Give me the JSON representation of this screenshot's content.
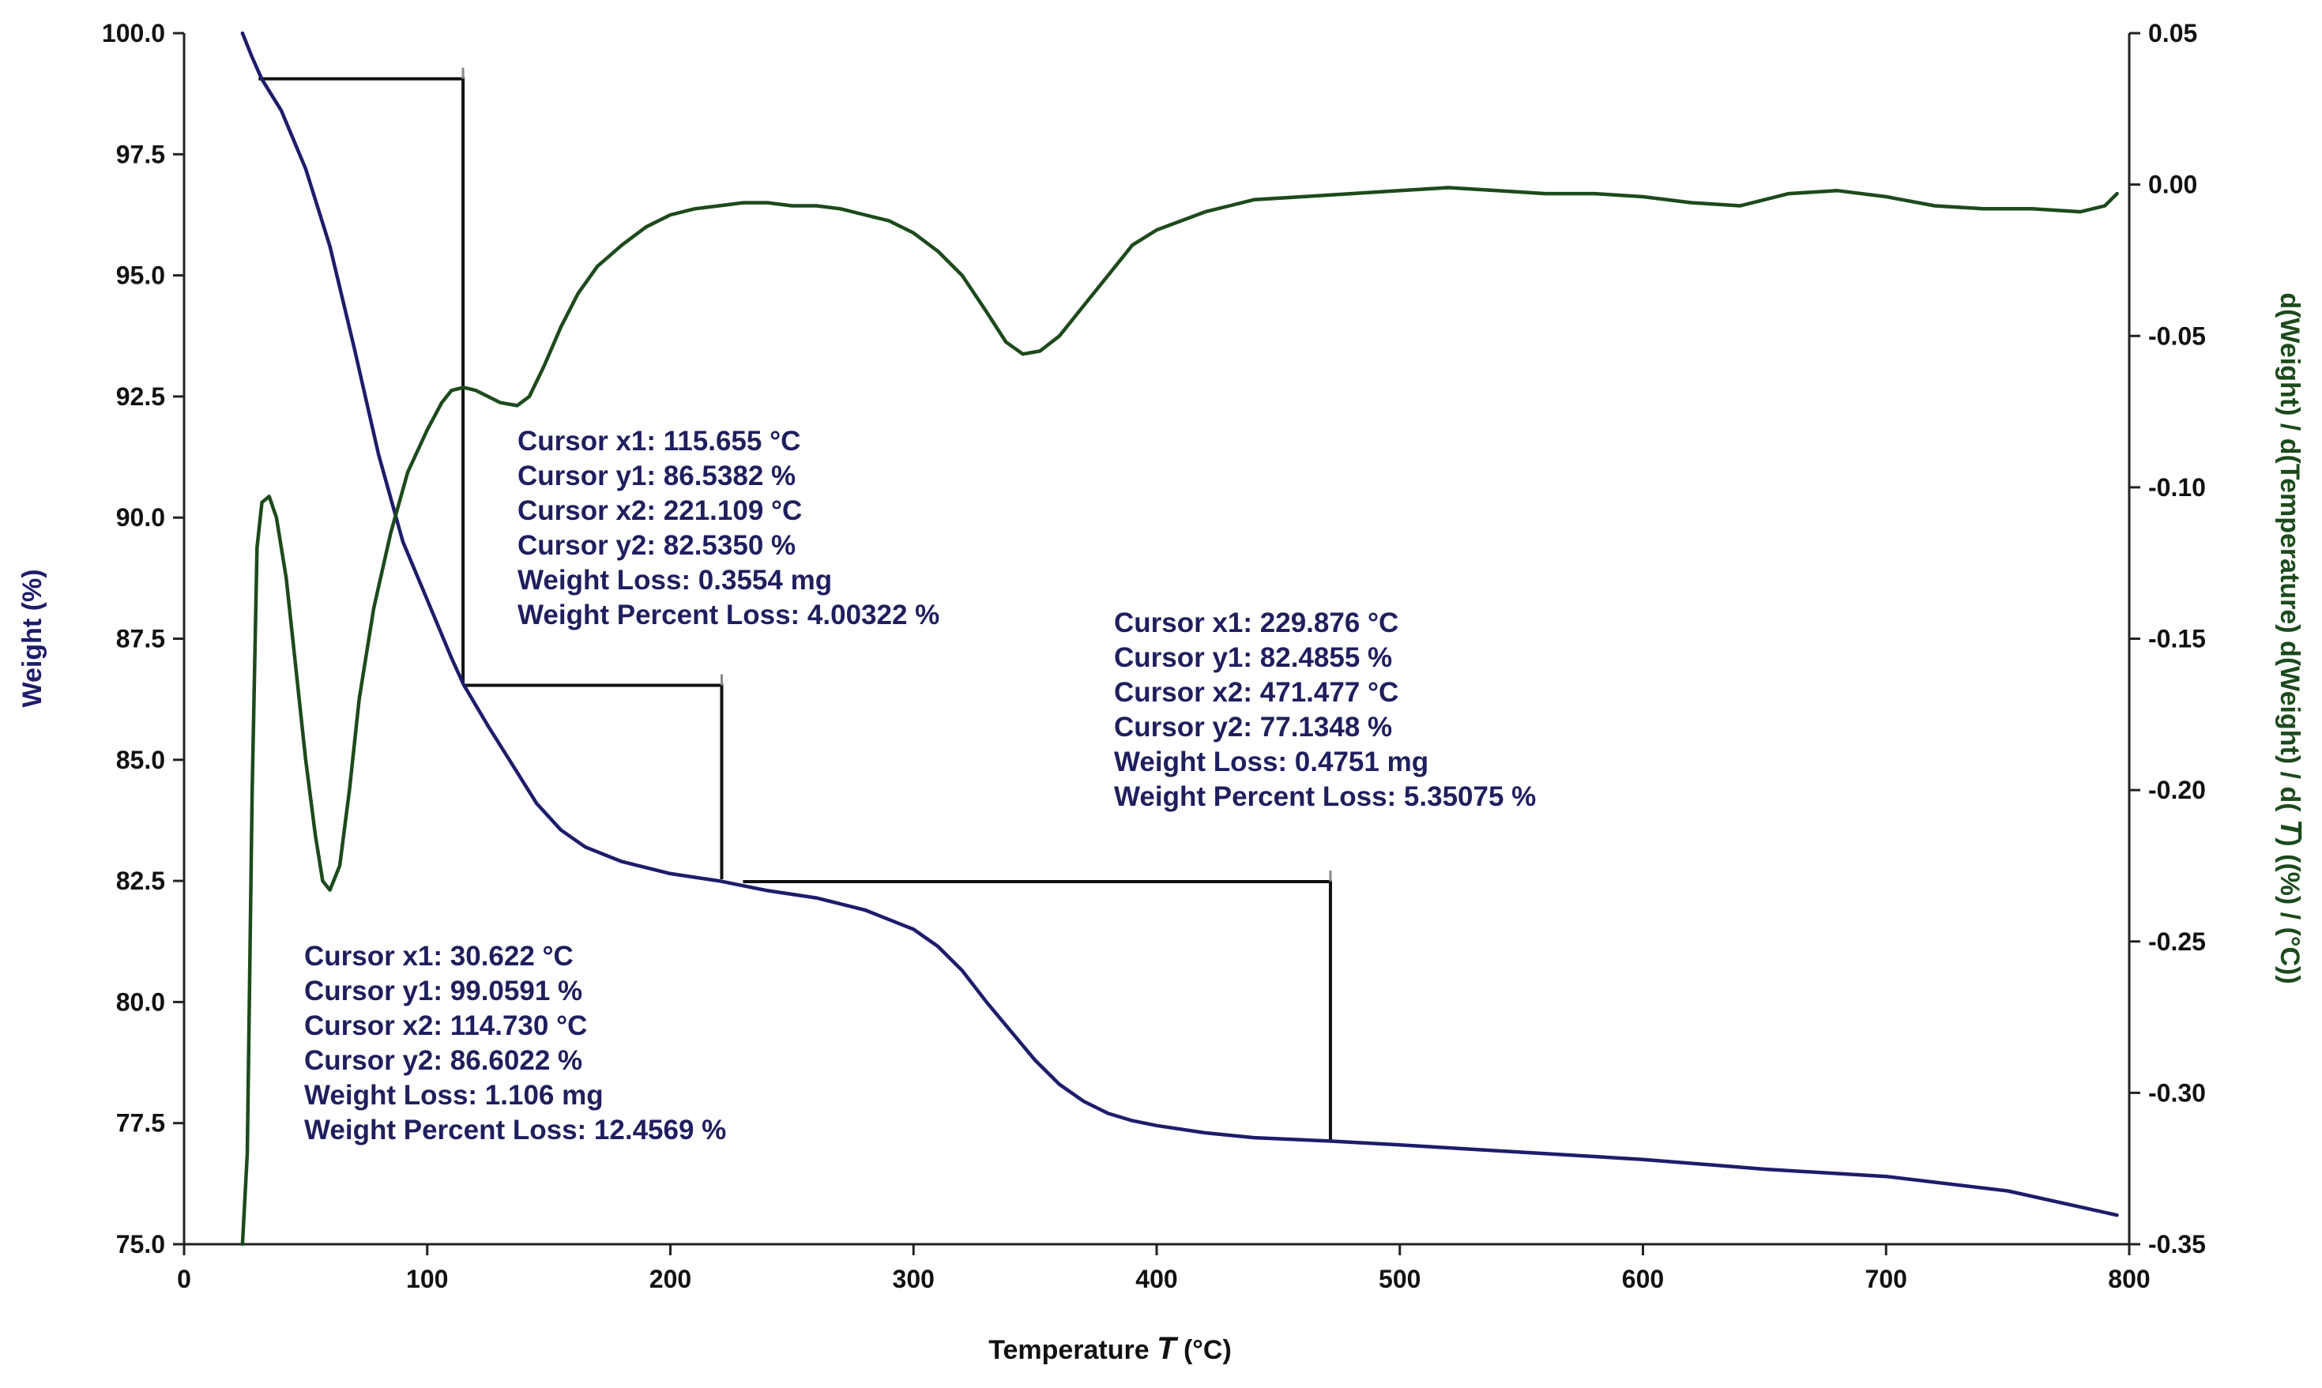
{
  "chart_data": {
    "type": "line",
    "title": "",
    "xlabel": "Temperature T (°C)",
    "xlabel_parts": {
      "prefix": "Temperature ",
      "symbol": "T",
      "suffix": " (°C)"
    },
    "ylabel": "Weight (%)",
    "y2label": "d(Weight) / d(Temperature) d(Weight) / d( T) ((%) / (°C))",
    "y2label_parts": {
      "prefix": "d(Weight) / d(Temperature) d(Weight) / d( ",
      "symbol": "T",
      "suffix": ") ((%) / (°C))"
    },
    "xlim": [
      0,
      800
    ],
    "ylim": [
      75.0,
      100.0
    ],
    "y2lim": [
      -0.35,
      0.05
    ],
    "x_ticks": [
      "0",
      "100",
      "200",
      "300",
      "400",
      "500",
      "600",
      "700",
      "800"
    ],
    "y_ticks": [
      "75.0",
      "77.5",
      "80.0",
      "82.5",
      "85.0",
      "87.5",
      "90.0",
      "92.5",
      "95.0",
      "97.5",
      "100.0"
    ],
    "y2_ticks": [
      "-0.35",
      "-0.30",
      "-0.25",
      "-0.20",
      "-0.15",
      "-0.10",
      "-0.05",
      "0.00",
      "0.05"
    ],
    "grid": false,
    "colors": {
      "weight": "#1d1d6b",
      "derivative": "#1c4a1c",
      "cursor": "#111111",
      "annot": "#1f1f5e"
    },
    "series": [
      {
        "axis": "left",
        "color": "#1d1d6b",
        "x": [
          24,
          28,
          32,
          40,
          50,
          60,
          70,
          80,
          90,
          100,
          110,
          115,
          125,
          135,
          145,
          155,
          165,
          180,
          200,
          220,
          240,
          260,
          280,
          300,
          310,
          320,
          330,
          340,
          350,
          360,
          370,
          380,
          390,
          400,
          420,
          440,
          471,
          500,
          550,
          600,
          650,
          700,
          750,
          795
        ],
        "y": [
          100.0,
          99.5,
          99.05,
          98.4,
          97.2,
          95.6,
          93.5,
          91.3,
          89.5,
          88.3,
          87.1,
          86.55,
          85.7,
          84.9,
          84.1,
          83.55,
          83.2,
          82.9,
          82.65,
          82.5,
          82.3,
          82.15,
          81.9,
          81.5,
          81.15,
          80.65,
          80.0,
          79.4,
          78.8,
          78.3,
          77.95,
          77.7,
          77.55,
          77.45,
          77.3,
          77.2,
          77.13,
          77.05,
          76.9,
          76.75,
          76.55,
          76.4,
          76.1,
          75.6
        ]
      },
      {
        "axis": "right",
        "color": "#1c4a1c",
        "x": [
          24,
          26,
          28,
          30,
          32,
          35,
          38,
          42,
          46,
          50,
          54,
          57,
          60,
          64,
          68,
          72,
          78,
          85,
          92,
          100,
          106,
          110,
          115,
          120,
          125,
          130,
          137,
          142,
          148,
          155,
          162,
          170,
          180,
          190,
          200,
          210,
          220,
          230,
          240,
          250,
          260,
          270,
          280,
          290,
          300,
          310,
          320,
          330,
          338,
          345,
          352,
          360,
          370,
          380,
          390,
          400,
          410,
          420,
          430,
          440,
          460,
          480,
          500,
          520,
          540,
          560,
          580,
          600,
          620,
          640,
          660,
          680,
          700,
          720,
          740,
          760,
          780,
          790,
          795
        ],
        "y": [
          -0.35,
          -0.32,
          -0.2,
          -0.12,
          -0.105,
          -0.103,
          -0.11,
          -0.13,
          -0.16,
          -0.19,
          -0.215,
          -0.23,
          -0.233,
          -0.225,
          -0.2,
          -0.17,
          -0.14,
          -0.115,
          -0.095,
          -0.081,
          -0.072,
          -0.068,
          -0.067,
          -0.068,
          -0.07,
          -0.072,
          -0.073,
          -0.07,
          -0.06,
          -0.047,
          -0.036,
          -0.027,
          -0.02,
          -0.014,
          -0.01,
          -0.008,
          -0.007,
          -0.006,
          -0.006,
          -0.007,
          -0.007,
          -0.008,
          -0.01,
          -0.012,
          -0.016,
          -0.022,
          -0.03,
          -0.042,
          -0.052,
          -0.056,
          -0.055,
          -0.05,
          -0.04,
          -0.03,
          -0.02,
          -0.015,
          -0.012,
          -0.009,
          -0.007,
          -0.005,
          -0.004,
          -0.003,
          -0.002,
          -0.001,
          -0.002,
          -0.003,
          -0.003,
          -0.004,
          -0.006,
          -0.007,
          -0.003,
          -0.002,
          -0.004,
          -0.007,
          -0.008,
          -0.008,
          -0.009,
          -0.007,
          -0.003
        ]
      }
    ],
    "cursor_brackets": [
      {
        "x1": 30.622,
        "y1": 99.0591,
        "x2": 114.73,
        "y2": 86.6022
      },
      {
        "x1": 115.655,
        "y1": 86.5382,
        "x2": 221.109,
        "y2": 82.535
      },
      {
        "x1": 229.876,
        "y1": 82.4855,
        "x2": 471.477,
        "y2": 77.1348
      }
    ],
    "annotations": [
      {
        "lines": [
          "Cursor x1: 30.622 °C",
          "Cursor y1: 99.0591 %",
          "Cursor x2: 114.730 °C",
          "Cursor y2: 86.6022 %",
          "Weight Loss: 1.106 mg",
          "Weight Percent Loss: 12.4569 %"
        ]
      },
      {
        "lines": [
          "Cursor x1: 115.655 °C",
          "Cursor y1: 86.5382 %",
          "Cursor x2: 221.109 °C",
          "Cursor y2: 82.5350 %",
          "Weight Loss: 0.3554 mg",
          "Weight Percent Loss: 4.00322 %"
        ]
      },
      {
        "lines": [
          "Cursor x1: 229.876 °C",
          "Cursor y1: 82.4855 %",
          "Cursor x2: 471.477 °C",
          "Cursor y2: 77.1348 %",
          "Weight Loss: 0.4751 mg",
          "Weight Percent Loss: 5.35075 %"
        ]
      }
    ]
  }
}
